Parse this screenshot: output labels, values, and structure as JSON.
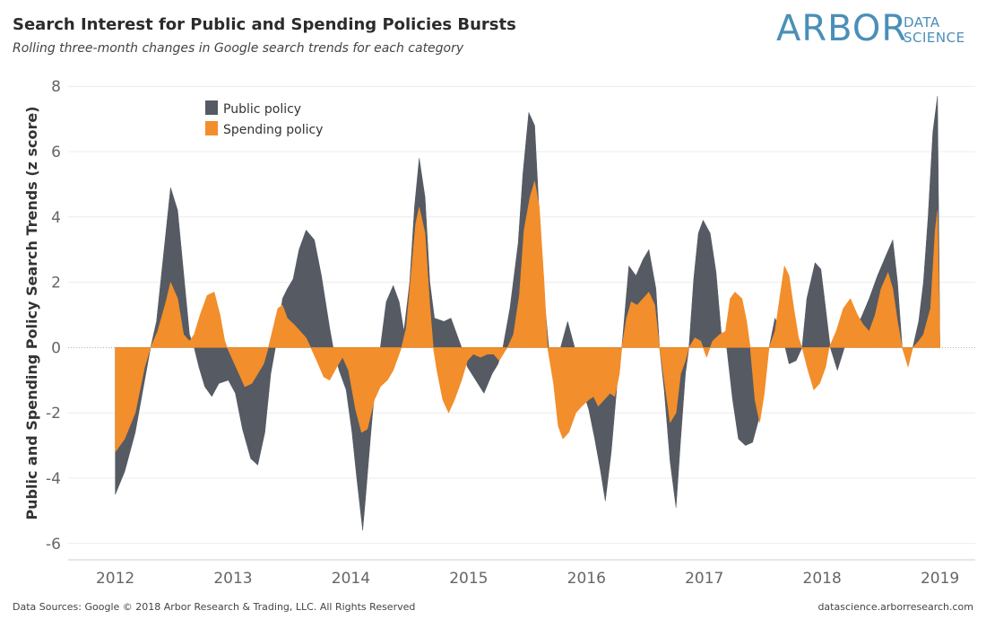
{
  "header": {
    "title": "Search Interest for Public and Spending Policies Bursts",
    "subtitle": "Rolling three-month changes in Google search trends for each category"
  },
  "logo": {
    "word": "ARBOR",
    "line1": "DATA",
    "line2": "SCIENCE",
    "color": "#4a8fb8"
  },
  "footer": {
    "source": "Data Sources: Google © 2018 Arbor Research & Trading, LLC. All Rights Reserved",
    "website": "datascience.arborresearch.com"
  },
  "chart_data": {
    "type": "area",
    "ylabel": "Public and Spending Policy Search Trends (z score)",
    "xlabel": "",
    "ylim": [
      -6.5,
      8.5
    ],
    "yticks": [
      -6,
      -4,
      -2,
      0,
      2,
      4,
      6,
      8
    ],
    "xticks": [
      "2012",
      "2013",
      "2014",
      "2015",
      "2016",
      "2017",
      "2018",
      "2019"
    ],
    "xlim": [
      2011.6,
      2019.3
    ],
    "grid": true,
    "legend_position": "top-left",
    "colors": {
      "public": "#555a63",
      "spending": "#f28e2b"
    },
    "series": [
      {
        "name": "Public policy",
        "points": [
          [
            2012.0,
            -4.5
          ],
          [
            2012.08,
            -3.8
          ],
          [
            2012.17,
            -2.6
          ],
          [
            2012.25,
            -1.0
          ],
          [
            2012.3,
            0.0
          ],
          [
            2012.35,
            0.8
          ],
          [
            2012.42,
            3.2
          ],
          [
            2012.47,
            4.9
          ],
          [
            2012.53,
            4.2
          ],
          [
            2012.58,
            2.3
          ],
          [
            2012.63,
            0.4
          ],
          [
            2012.67,
            0.0
          ],
          [
            2012.71,
            -0.6
          ],
          [
            2012.76,
            -1.2
          ],
          [
            2012.82,
            -1.5
          ],
          [
            2012.88,
            -1.1
          ],
          [
            2012.96,
            -1.0
          ],
          [
            2013.02,
            -1.4
          ],
          [
            2013.08,
            -2.5
          ],
          [
            2013.15,
            -3.4
          ],
          [
            2013.21,
            -3.6
          ],
          [
            2013.27,
            -2.6
          ],
          [
            2013.32,
            -0.8
          ],
          [
            2013.36,
            0.0
          ],
          [
            2013.42,
            1.5
          ],
          [
            2013.46,
            1.8
          ],
          [
            2013.51,
            2.1
          ],
          [
            2013.56,
            3.0
          ],
          [
            2013.62,
            3.6
          ],
          [
            2013.69,
            3.3
          ],
          [
            2013.75,
            2.2
          ],
          [
            2013.82,
            0.6
          ],
          [
            2013.85,
            0.0
          ],
          [
            2013.9,
            -0.7
          ],
          [
            2013.96,
            -1.3
          ],
          [
            2014.01,
            -2.6
          ],
          [
            2014.05,
            -4.0
          ],
          [
            2014.1,
            -5.6
          ],
          [
            2014.12,
            -4.8
          ],
          [
            2014.17,
            -2.6
          ],
          [
            2014.22,
            -0.6
          ],
          [
            2014.25,
            0.0
          ],
          [
            2014.3,
            1.4
          ],
          [
            2014.36,
            1.9
          ],
          [
            2014.41,
            1.4
          ],
          [
            2014.45,
            0.5
          ],
          [
            2014.5,
            2.0
          ],
          [
            2014.54,
            4.3
          ],
          [
            2014.58,
            5.8
          ],
          [
            2014.63,
            4.6
          ],
          [
            2014.67,
            2.0
          ],
          [
            2014.71,
            0.9
          ],
          [
            2014.79,
            0.8
          ],
          [
            2014.85,
            0.9
          ],
          [
            2014.9,
            0.4
          ],
          [
            2014.94,
            0.0
          ],
          [
            2014.99,
            -0.6
          ],
          [
            2015.06,
            -1.0
          ],
          [
            2015.13,
            -1.4
          ],
          [
            2015.2,
            -0.8
          ],
          [
            2015.25,
            -0.5
          ],
          [
            2015.29,
            0.0
          ],
          [
            2015.35,
            1.2
          ],
          [
            2015.42,
            3.2
          ],
          [
            2015.46,
            5.3
          ],
          [
            2015.51,
            7.2
          ],
          [
            2015.56,
            6.8
          ],
          [
            2015.6,
            4.0
          ],
          [
            2015.64,
            1.6
          ],
          [
            2015.68,
            0.0
          ],
          [
            2015.73,
            -0.6
          ],
          [
            2015.78,
            0.0
          ],
          [
            2015.84,
            0.8
          ],
          [
            2015.9,
            0.0
          ],
          [
            2015.95,
            -1.1
          ],
          [
            2016.02,
            -1.9
          ],
          [
            2016.07,
            -2.8
          ],
          [
            2016.12,
            -3.8
          ],
          [
            2016.16,
            -4.7
          ],
          [
            2016.21,
            -3.2
          ],
          [
            2016.26,
            -1.1
          ],
          [
            2016.3,
            0.0
          ],
          [
            2016.36,
            2.5
          ],
          [
            2016.42,
            2.2
          ],
          [
            2016.48,
            2.7
          ],
          [
            2016.53,
            3.0
          ],
          [
            2016.59,
            1.8
          ],
          [
            2016.62,
            0.0
          ],
          [
            2016.66,
            -1.3
          ],
          [
            2016.71,
            -3.5
          ],
          [
            2016.76,
            -4.9
          ],
          [
            2016.8,
            -2.8
          ],
          [
            2016.84,
            -0.8
          ],
          [
            2016.87,
            0.0
          ],
          [
            2016.91,
            2.1
          ],
          [
            2016.95,
            3.5
          ],
          [
            2016.99,
            3.9
          ],
          [
            2017.05,
            3.5
          ],
          [
            2017.1,
            2.3
          ],
          [
            2017.15,
            0.2
          ],
          [
            2017.19,
            0.0
          ],
          [
            2017.24,
            -1.6
          ],
          [
            2017.29,
            -2.8
          ],
          [
            2017.35,
            -3.0
          ],
          [
            2017.41,
            -2.9
          ],
          [
            2017.47,
            -2.1
          ],
          [
            2017.52,
            -0.2
          ],
          [
            2017.55,
            0.0
          ],
          [
            2017.6,
            0.9
          ],
          [
            2017.66,
            0.4
          ],
          [
            2017.72,
            -0.5
          ],
          [
            2017.78,
            -0.4
          ],
          [
            2017.83,
            0.0
          ],
          [
            2017.87,
            1.5
          ],
          [
            2017.94,
            2.6
          ],
          [
            2017.99,
            2.4
          ],
          [
            2018.02,
            1.5
          ],
          [
            2018.07,
            0.0
          ],
          [
            2018.13,
            -0.7
          ],
          [
            2018.19,
            0.0
          ],
          [
            2018.26,
            0.6
          ],
          [
            2018.33,
            0.9
          ],
          [
            2018.4,
            1.5
          ],
          [
            2018.47,
            2.2
          ],
          [
            2018.54,
            2.8
          ],
          [
            2018.6,
            3.3
          ],
          [
            2018.64,
            2.0
          ],
          [
            2018.68,
            0.0
          ],
          [
            2018.73,
            -0.5
          ],
          [
            2018.77,
            0.0
          ],
          [
            2018.82,
            0.8
          ],
          [
            2018.86,
            2.0
          ],
          [
            2018.9,
            4.0
          ],
          [
            2018.94,
            6.6
          ],
          [
            2018.98,
            7.7
          ],
          [
            2019.0,
            0.0
          ]
        ]
      },
      {
        "name": "Spending policy",
        "points": [
          [
            2012.0,
            -3.2
          ],
          [
            2012.08,
            -2.8
          ],
          [
            2012.17,
            -2.0
          ],
          [
            2012.25,
            -0.6
          ],
          [
            2012.3,
            0.0
          ],
          [
            2012.36,
            0.5
          ],
          [
            2012.43,
            1.4
          ],
          [
            2012.47,
            2.0
          ],
          [
            2012.53,
            1.5
          ],
          [
            2012.58,
            0.4
          ],
          [
            2012.63,
            0.2
          ],
          [
            2012.67,
            0.4
          ],
          [
            2012.72,
            1.0
          ],
          [
            2012.78,
            1.6
          ],
          [
            2012.84,
            1.7
          ],
          [
            2012.89,
            1.0
          ],
          [
            2012.93,
            0.2
          ],
          [
            2012.95,
            0.0
          ],
          [
            2013.0,
            -0.4
          ],
          [
            2013.05,
            -0.8
          ],
          [
            2013.1,
            -1.2
          ],
          [
            2013.16,
            -1.1
          ],
          [
            2013.21,
            -0.8
          ],
          [
            2013.26,
            -0.5
          ],
          [
            2013.3,
            0.0
          ],
          [
            2013.34,
            0.6
          ],
          [
            2013.38,
            1.2
          ],
          [
            2013.42,
            1.3
          ],
          [
            2013.46,
            0.9
          ],
          [
            2013.52,
            0.7
          ],
          [
            2013.57,
            0.5
          ],
          [
            2013.62,
            0.3
          ],
          [
            2013.66,
            0.0
          ],
          [
            2013.71,
            -0.4
          ],
          [
            2013.77,
            -0.9
          ],
          [
            2013.82,
            -1.0
          ],
          [
            2013.88,
            -0.6
          ],
          [
            2013.93,
            -0.3
          ],
          [
            2013.98,
            -0.7
          ],
          [
            2014.04,
            -1.9
          ],
          [
            2014.09,
            -2.6
          ],
          [
            2014.14,
            -2.5
          ],
          [
            2014.2,
            -1.6
          ],
          [
            2014.25,
            -1.2
          ],
          [
            2014.31,
            -1.0
          ],
          [
            2014.36,
            -0.7
          ],
          [
            2014.41,
            -0.2
          ],
          [
            2014.43,
            0.0
          ],
          [
            2014.47,
            0.6
          ],
          [
            2014.51,
            2.2
          ],
          [
            2014.55,
            3.8
          ],
          [
            2014.58,
            4.3
          ],
          [
            2014.63,
            3.5
          ],
          [
            2014.67,
            1.3
          ],
          [
            2014.7,
            0.0
          ],
          [
            2014.73,
            -0.7
          ],
          [
            2014.78,
            -1.6
          ],
          [
            2014.83,
            -2.0
          ],
          [
            2014.88,
            -1.6
          ],
          [
            2014.94,
            -1.0
          ],
          [
            2014.99,
            -0.4
          ],
          [
            2015.04,
            -0.2
          ],
          [
            2015.1,
            -0.3
          ],
          [
            2015.16,
            -0.2
          ],
          [
            2015.21,
            -0.2
          ],
          [
            2015.26,
            -0.4
          ],
          [
            2015.31,
            -0.1
          ],
          [
            2015.33,
            0.0
          ],
          [
            2015.38,
            0.4
          ],
          [
            2015.43,
            1.6
          ],
          [
            2015.47,
            3.6
          ],
          [
            2015.52,
            4.6
          ],
          [
            2015.56,
            5.1
          ],
          [
            2015.6,
            4.3
          ],
          [
            2015.64,
            2.0
          ],
          [
            2015.67,
            0.0
          ],
          [
            2015.72,
            -1.1
          ],
          [
            2015.76,
            -2.4
          ],
          [
            2015.8,
            -2.8
          ],
          [
            2015.85,
            -2.6
          ],
          [
            2015.91,
            -2.0
          ],
          [
            2015.96,
            -1.8
          ],
          [
            2016.02,
            -1.6
          ],
          [
            2016.06,
            -1.5
          ],
          [
            2016.1,
            -1.8
          ],
          [
            2016.15,
            -1.6
          ],
          [
            2016.2,
            -1.4
          ],
          [
            2016.24,
            -1.5
          ],
          [
            2016.28,
            -0.8
          ],
          [
            2016.3,
            0.0
          ],
          [
            2016.34,
            0.9
          ],
          [
            2016.38,
            1.4
          ],
          [
            2016.43,
            1.3
          ],
          [
            2016.48,
            1.5
          ],
          [
            2016.53,
            1.7
          ],
          [
            2016.58,
            1.3
          ],
          [
            2016.62,
            0.0
          ],
          [
            2016.66,
            -1.0
          ],
          [
            2016.71,
            -2.3
          ],
          [
            2016.76,
            -2.0
          ],
          [
            2016.8,
            -0.8
          ],
          [
            2016.84,
            -0.4
          ],
          [
            2016.87,
            0.0
          ],
          [
            2016.92,
            0.3
          ],
          [
            2016.97,
            0.2
          ],
          [
            2017.02,
            -0.3
          ],
          [
            2017.07,
            0.2
          ],
          [
            2017.13,
            0.4
          ],
          [
            2017.18,
            0.5
          ],
          [
            2017.22,
            1.5
          ],
          [
            2017.26,
            1.7
          ],
          [
            2017.32,
            1.5
          ],
          [
            2017.36,
            0.8
          ],
          [
            2017.39,
            0.0
          ],
          [
            2017.43,
            -1.6
          ],
          [
            2017.47,
            -2.3
          ],
          [
            2017.51,
            -1.4
          ],
          [
            2017.55,
            0.0
          ],
          [
            2017.6,
            0.5
          ],
          [
            2017.64,
            1.5
          ],
          [
            2017.68,
            2.5
          ],
          [
            2017.72,
            2.2
          ],
          [
            2017.76,
            1.2
          ],
          [
            2017.8,
            0.3
          ],
          [
            2017.83,
            0.0
          ],
          [
            2017.88,
            -0.7
          ],
          [
            2017.93,
            -1.3
          ],
          [
            2017.98,
            -1.1
          ],
          [
            2018.03,
            -0.6
          ],
          [
            2018.06,
            0.0
          ],
          [
            2018.12,
            0.5
          ],
          [
            2018.18,
            1.2
          ],
          [
            2018.24,
            1.5
          ],
          [
            2018.3,
            1.0
          ],
          [
            2018.35,
            0.7
          ],
          [
            2018.4,
            0.5
          ],
          [
            2018.45,
            1.0
          ],
          [
            2018.5,
            1.8
          ],
          [
            2018.56,
            2.3
          ],
          [
            2018.6,
            1.8
          ],
          [
            2018.64,
            0.8
          ],
          [
            2018.68,
            0.0
          ],
          [
            2018.73,
            -0.6
          ],
          [
            2018.77,
            0.0
          ],
          [
            2018.82,
            0.2
          ],
          [
            2018.86,
            0.4
          ],
          [
            2018.92,
            1.2
          ],
          [
            2018.96,
            3.6
          ],
          [
            2018.98,
            4.2
          ],
          [
            2019.0,
            0.0
          ]
        ]
      }
    ]
  }
}
